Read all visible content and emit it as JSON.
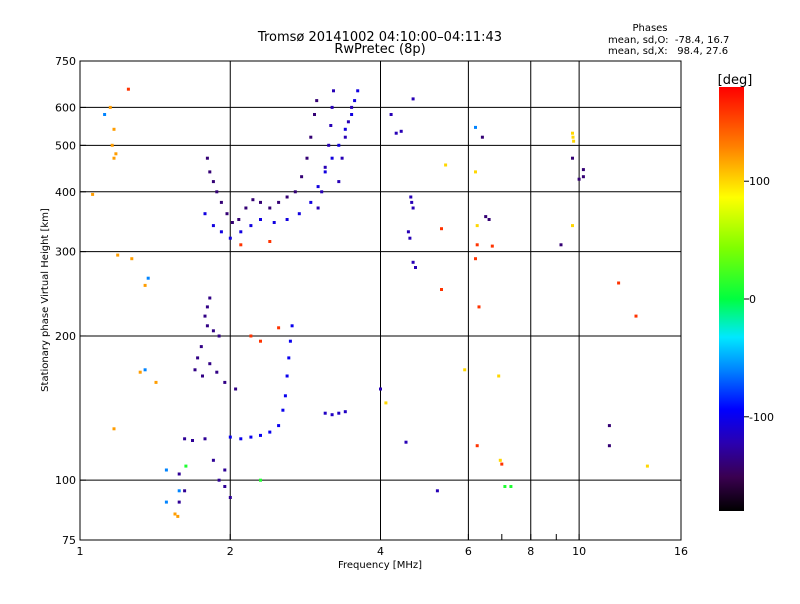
{
  "chart_data": {
    "type": "scatter",
    "title": "Tromsø 20141002 04:10:00–04:11:43",
    "subtitle": "RwPretec (8p)",
    "xlabel": "Frequency [MHz]",
    "ylabel": "Stationary phase Virtual Height [km]",
    "xscale": "log",
    "yscale": "log",
    "xlim": [
      1,
      16
    ],
    "ylim": [
      75,
      750
    ],
    "x_ticks": [
      1,
      2,
      4,
      6,
      8,
      10,
      16
    ],
    "x_tick_labels": [
      "1",
      "2",
      "4",
      "6",
      "8",
      "10",
      "16"
    ],
    "x_minor_ticks": [
      7,
      9
    ],
    "y_ticks": [
      75,
      100,
      200,
      300,
      400,
      500,
      600,
      750
    ],
    "y_tick_labels": [
      "75",
      "100",
      "200",
      "300",
      "400",
      "500",
      "600",
      "750"
    ],
    "grid_x": [
      2,
      4,
      6,
      8,
      10
    ],
    "grid_y": [
      100,
      200,
      300,
      400,
      500,
      600
    ],
    "legend": {
      "title": "Phases",
      "lines": [
        "mean, sd,O:  -78.4, 16.7",
        "mean, sd,X:   98.4, 27.6"
      ],
      "placement": "top-right"
    },
    "colorbar": {
      "label": "[deg]",
      "range": [
        -180,
        180
      ],
      "ticks": [
        100,
        0,
        -100
      ],
      "tick_labels": [
        "100",
        "0",
        "-100"
      ]
    },
    "clusters": [
      {
        "name": "",
        "color_deg": -140,
        "points": [
          [
            1.8,
            470
          ],
          [
            1.82,
            440
          ],
          [
            1.85,
            420
          ],
          [
            1.88,
            400
          ],
          [
            1.92,
            380
          ],
          [
            1.97,
            360
          ],
          [
            2.02,
            345
          ],
          [
            2.08,
            350
          ],
          [
            2.15,
            370
          ],
          [
            2.22,
            385
          ],
          [
            2.3,
            380
          ],
          [
            2.4,
            370
          ],
          [
            2.5,
            380
          ],
          [
            2.6,
            390
          ],
          [
            2.7,
            400
          ],
          [
            2.78,
            430
          ],
          [
            2.85,
            470
          ],
          [
            2.9,
            520
          ],
          [
            2.95,
            580
          ],
          [
            2.98,
            620
          ]
        ]
      },
      {
        "name": "",
        "color_deg": -105,
        "points": [
          [
            1.78,
            360
          ],
          [
            1.85,
            340
          ],
          [
            1.92,
            330
          ],
          [
            2.0,
            320
          ],
          [
            2.1,
            330
          ],
          [
            2.2,
            340
          ],
          [
            2.3,
            350
          ],
          [
            2.45,
            345
          ],
          [
            2.6,
            350
          ],
          [
            2.75,
            360
          ],
          [
            2.9,
            380
          ],
          [
            3.0,
            410
          ],
          [
            3.1,
            440
          ],
          [
            3.2,
            470
          ],
          [
            3.3,
            500
          ],
          [
            3.4,
            540
          ],
          [
            3.5,
            580
          ],
          [
            3.55,
            620
          ],
          [
            3.6,
            650
          ]
        ]
      },
      {
        "name": "",
        "color_deg": -120,
        "points": [
          [
            3.0,
            370
          ],
          [
            3.05,
            400
          ],
          [
            3.1,
            450
          ],
          [
            3.15,
            500
          ],
          [
            3.18,
            550
          ],
          [
            3.2,
            600
          ],
          [
            3.22,
            650
          ],
          [
            3.3,
            420
          ],
          [
            3.35,
            470
          ],
          [
            3.4,
            520
          ],
          [
            3.45,
            560
          ],
          [
            3.5,
            600
          ]
        ]
      },
      {
        "name": "",
        "color_deg": -135,
        "points": [
          [
            1.82,
            240
          ],
          [
            1.8,
            230
          ],
          [
            1.78,
            220
          ],
          [
            1.8,
            210
          ],
          [
            1.85,
            205
          ],
          [
            1.9,
            200
          ],
          [
            1.75,
            190
          ],
          [
            1.72,
            180
          ],
          [
            1.7,
            170
          ],
          [
            1.76,
            165
          ],
          [
            1.82,
            175
          ],
          [
            1.88,
            168
          ],
          [
            1.95,
            160
          ],
          [
            2.05,
            155
          ]
        ]
      },
      {
        "name": "",
        "color_deg": -100,
        "points": [
          [
            2.0,
            123
          ],
          [
            2.1,
            122
          ],
          [
            2.2,
            123
          ],
          [
            2.3,
            124
          ],
          [
            2.4,
            126
          ],
          [
            2.5,
            130
          ],
          [
            2.55,
            140
          ],
          [
            2.58,
            150
          ],
          [
            2.6,
            165
          ],
          [
            2.62,
            180
          ],
          [
            2.64,
            195
          ],
          [
            2.66,
            210
          ]
        ]
      },
      {
        "name": "",
        "color_deg": -130,
        "points": [
          [
            1.62,
            122
          ],
          [
            1.68,
            121
          ],
          [
            1.78,
            122
          ],
          [
            1.58,
            103
          ],
          [
            1.62,
            95
          ],
          [
            1.58,
            90
          ],
          [
            1.85,
            110
          ],
          [
            1.9,
            100
          ],
          [
            1.95,
            97
          ],
          [
            2.0,
            92
          ],
          [
            1.95,
            105
          ]
        ]
      },
      {
        "name": "",
        "color_deg": -115,
        "points": [
          [
            3.1,
            138
          ],
          [
            3.2,
            137
          ],
          [
            3.3,
            138
          ],
          [
            3.4,
            139
          ]
        ]
      },
      {
        "name": "",
        "color_deg": -120,
        "points": [
          [
            4.65,
            625
          ],
          [
            4.2,
            580
          ],
          [
            4.3,
            530
          ],
          [
            4.4,
            535
          ],
          [
            4.6,
            390
          ],
          [
            4.62,
            380
          ],
          [
            4.65,
            370
          ],
          [
            4.55,
            330
          ],
          [
            4.58,
            320
          ],
          [
            4.65,
            285
          ],
          [
            4.7,
            278
          ],
          [
            4.0,
            155
          ],
          [
            5.2,
            95
          ],
          [
            4.5,
            120
          ]
        ]
      },
      {
        "name": "",
        "color_deg": 120,
        "points": [
          [
            1.15,
            600
          ],
          [
            1.17,
            540
          ],
          [
            1.16,
            500
          ],
          [
            1.18,
            480
          ],
          [
            1.17,
            470
          ],
          [
            1.06,
            395
          ],
          [
            1.19,
            295
          ],
          [
            1.27,
            290
          ],
          [
            1.35,
            255
          ],
          [
            1.32,
            168
          ],
          [
            1.42,
            160
          ],
          [
            1.17,
            128
          ],
          [
            1.55,
            85
          ],
          [
            1.57,
            84
          ]
        ]
      },
      {
        "name": "",
        "color_deg": 160,
        "points": [
          [
            1.25,
            655
          ],
          [
            2.1,
            310
          ],
          [
            2.4,
            315
          ],
          [
            2.5,
            208
          ],
          [
            2.2,
            200
          ],
          [
            2.3,
            195
          ],
          [
            5.3,
            335
          ],
          [
            5.3,
            250
          ],
          [
            6.25,
            310
          ],
          [
            6.2,
            290
          ],
          [
            6.3,
            230
          ],
          [
            6.25,
            118
          ],
          [
            6.7,
            308
          ],
          [
            7.0,
            108
          ],
          [
            12.0,
            258
          ],
          [
            13.0,
            220
          ]
        ]
      },
      {
        "name": "",
        "color_deg": 100,
        "points": [
          [
            5.4,
            455
          ],
          [
            6.2,
            440
          ],
          [
            6.25,
            340
          ],
          [
            5.9,
            170
          ],
          [
            6.9,
            165
          ],
          [
            6.95,
            110
          ],
          [
            9.7,
            530
          ],
          [
            9.72,
            520
          ],
          [
            9.75,
            510
          ],
          [
            9.7,
            340
          ],
          [
            13.7,
            107
          ],
          [
            4.1,
            145
          ]
        ]
      },
      {
        "name": "",
        "color_deg": -140,
        "points": [
          [
            6.4,
            520
          ],
          [
            6.5,
            355
          ],
          [
            6.6,
            350
          ],
          [
            9.7,
            470
          ],
          [
            10.2,
            445
          ],
          [
            10.0,
            425
          ],
          [
            10.2,
            430
          ],
          [
            9.2,
            310
          ],
          [
            11.5,
            130
          ],
          [
            11.5,
            118
          ]
        ]
      },
      {
        "name": "",
        "color_deg": 10,
        "points": [
          [
            7.1,
            97
          ],
          [
            7.3,
            97
          ],
          [
            1.63,
            107
          ],
          [
            2.3,
            100
          ]
        ]
      },
      {
        "name": "",
        "color_deg": -60,
        "points": [
          [
            1.12,
            580
          ],
          [
            1.35,
            170
          ],
          [
            1.49,
            105
          ],
          [
            1.49,
            90
          ],
          [
            1.58,
            95
          ],
          [
            6.2,
            545
          ],
          [
            1.37,
            264
          ]
        ]
      }
    ]
  }
}
